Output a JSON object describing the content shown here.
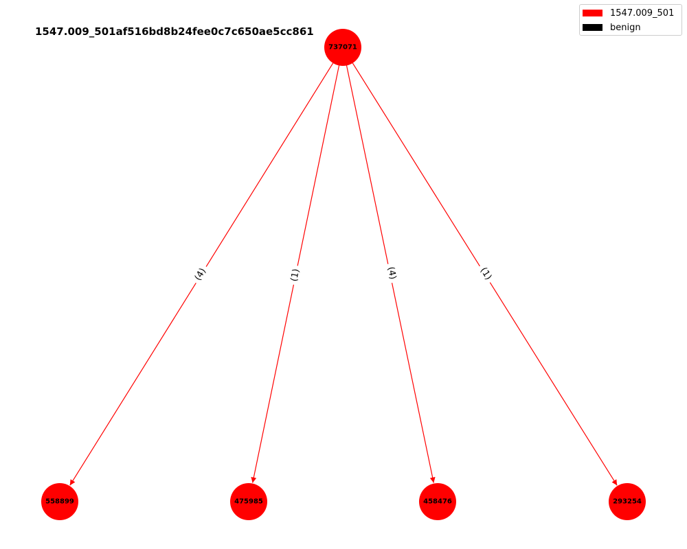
{
  "title": "1547.009_501af516bd8b24fee0c7c650ae5cc861",
  "legend": [
    {
      "label": "1547.009_501",
      "color": "#ff0000"
    },
    {
      "label": "benign",
      "color": "#000000"
    }
  ],
  "colors": {
    "node": "#ff0000",
    "edge": "#ff0000"
  },
  "nodes": [
    {
      "id": "737071"
    },
    {
      "id": "558899"
    },
    {
      "id": "475985"
    },
    {
      "id": "458476"
    },
    {
      "id": "293254"
    }
  ],
  "edges": [
    {
      "source": "737071",
      "target": "558899",
      "label": "(4)"
    },
    {
      "source": "737071",
      "target": "475985",
      "label": "(1)"
    },
    {
      "source": "737071",
      "target": "458476",
      "label": "(4)"
    },
    {
      "source": "737071",
      "target": "293254",
      "label": "(1)"
    }
  ]
}
